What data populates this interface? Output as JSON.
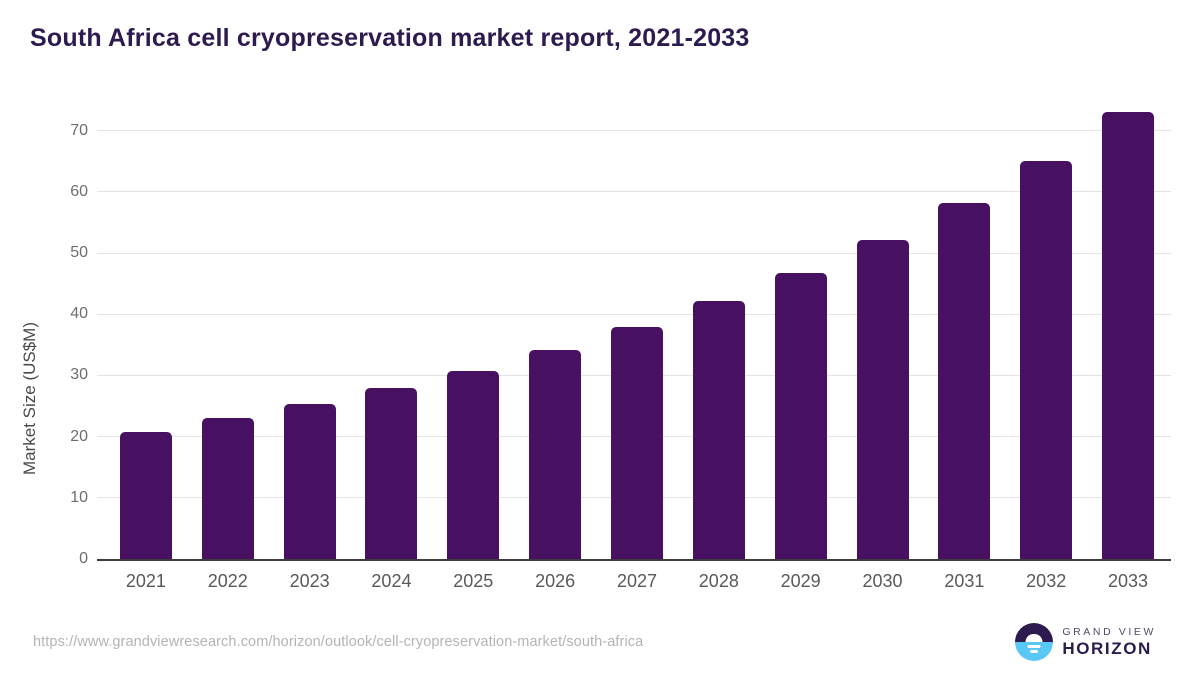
{
  "title": "South Africa cell cryopreservation market report, 2021-2033",
  "chart_data": {
    "type": "bar",
    "title": "South Africa cell cryopreservation market report, 2021-2033",
    "categories": [
      "2021",
      "2022",
      "2023",
      "2024",
      "2025",
      "2026",
      "2027",
      "2028",
      "2029",
      "2030",
      "2031",
      "2032",
      "2033"
    ],
    "values": [
      20.7,
      23.0,
      25.4,
      28.0,
      30.8,
      34.2,
      37.9,
      42.2,
      46.7,
      52.2,
      58.2,
      65.0,
      73.0
    ],
    "xlabel": "",
    "ylabel": "Market Size (US$M)",
    "ylim": [
      0,
      75
    ],
    "yticks": [
      0,
      10,
      20,
      30,
      40,
      50,
      60,
      70
    ],
    "grid": "horizontal",
    "legend_position": "none",
    "bar_color": "#471061"
  },
  "footer": {
    "source_url": "https://www.grandviewresearch.com/horizon/outlook/cell-cryopreservation-market/south-africa",
    "logo": {
      "line1": "GRAND VIEW",
      "line2": "HORIZON",
      "icon": "sunrise-horizon-icon"
    }
  },
  "colors": {
    "bar": "#471061",
    "title_text": "#2d1a4e",
    "gridline": "#e4e4e4",
    "axis_line": "#3c3c3c",
    "tick_text": "#6e6e6e",
    "x_label_text": "#58595b",
    "url_text": "#b4b4b4",
    "logo_blue": "#5ac8f5",
    "logo_purple": "#2d1a4e"
  }
}
